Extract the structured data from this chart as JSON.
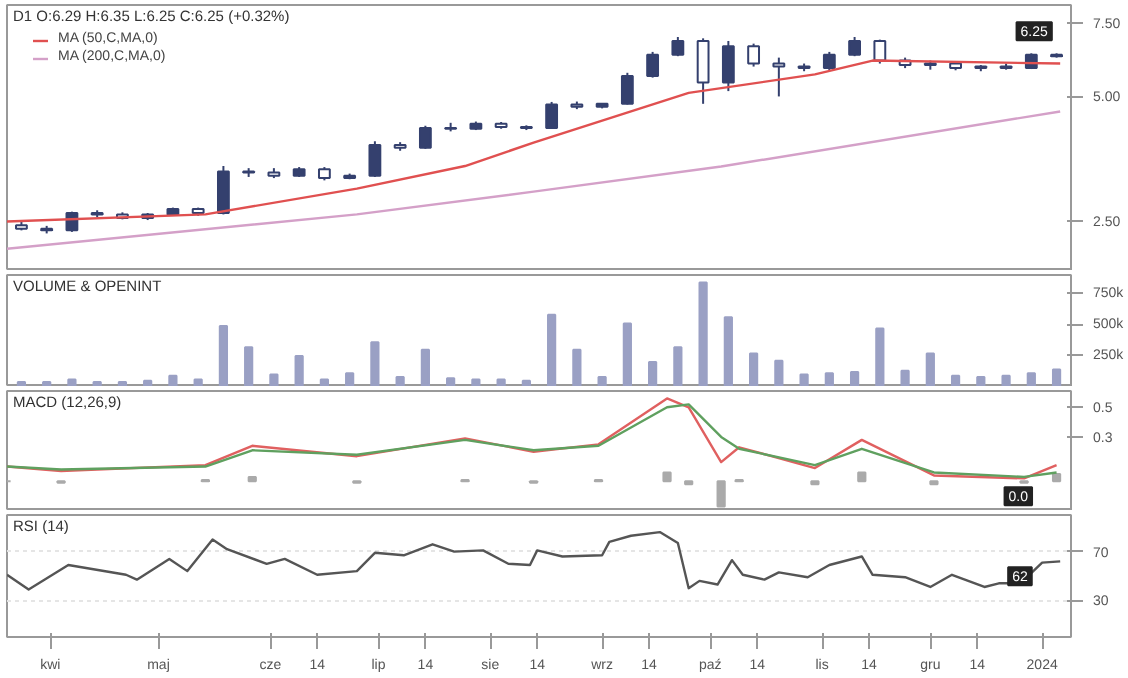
{
  "chart_data": [
    {
      "type": "candlestick",
      "title": "D1 O:6.29 H:6.35 L:6.25 C:6.25 (+0.32%)",
      "color": "#34406e",
      "log": "y",
      "ylim": [
        1.9,
        8.3
      ],
      "yticks": [
        {
          "value": 2.5,
          "label": "2.50"
        },
        {
          "value": 5,
          "label": "5.00"
        },
        {
          "value": 7.5,
          "label": "7.50"
        }
      ],
      "xlim": [
        "2023-03-20",
        "2024-01-09"
      ],
      "tick_labels": "y",
      "legend": "top left",
      "annotations": [
        {
          "text": "6.25",
          "x": "2024-01-05",
          "y": 6.25
        }
      ],
      "x": [
        "2023-03-24",
        "2023-03-31",
        "2023-04-07",
        "2023-04-14",
        "2023-04-21",
        "2023-04-28",
        "2023-05-05",
        "2023-05-12",
        "2023-05-19",
        "2023-05-26",
        "2023-06-02",
        "2023-06-09",
        "2023-06-16",
        "2023-06-23",
        "2023-06-30",
        "2023-07-07",
        "2023-07-14",
        "2023-07-21",
        "2023-07-28",
        "2023-08-04",
        "2023-08-11",
        "2023-08-18",
        "2023-08-25",
        "2023-09-01",
        "2023-09-08",
        "2023-09-15",
        "2023-09-22",
        "2023-09-29",
        "2023-10-06",
        "2023-10-13",
        "2023-10-20",
        "2023-10-27",
        "2023-11-03",
        "2023-11-10",
        "2023-11-17",
        "2023-11-24",
        "2023-12-01",
        "2023-12-08",
        "2023-12-15",
        "2023-12-22",
        "2023-12-29",
        "2024-01-05"
      ],
      "ohlc": [
        [
          2.45,
          2.5,
          2.38,
          2.4
        ],
        [
          2.4,
          2.44,
          2.34,
          2.38
        ],
        [
          2.38,
          2.64,
          2.36,
          2.62
        ],
        [
          2.62,
          2.66,
          2.56,
          2.6
        ],
        [
          2.6,
          2.63,
          2.53,
          2.55
        ],
        [
          2.55,
          2.62,
          2.52,
          2.6
        ],
        [
          2.6,
          2.7,
          2.58,
          2.68
        ],
        [
          2.68,
          2.7,
          2.58,
          2.62
        ],
        [
          2.62,
          3.4,
          2.6,
          3.3
        ],
        [
          3.3,
          3.36,
          3.2,
          3.28
        ],
        [
          3.28,
          3.36,
          3.18,
          3.22
        ],
        [
          3.22,
          3.38,
          3.2,
          3.34
        ],
        [
          3.34,
          3.38,
          3.14,
          3.18
        ],
        [
          3.18,
          3.26,
          3.16,
          3.22
        ],
        [
          3.22,
          3.9,
          3.2,
          3.82
        ],
        [
          3.82,
          3.88,
          3.7,
          3.76
        ],
        [
          3.76,
          4.25,
          3.74,
          4.2
        ],
        [
          4.2,
          4.32,
          4.12,
          4.18
        ],
        [
          4.18,
          4.35,
          4.15,
          4.3
        ],
        [
          4.3,
          4.34,
          4.18,
          4.22
        ],
        [
          4.22,
          4.26,
          4.15,
          4.2
        ],
        [
          4.2,
          4.85,
          4.18,
          4.78
        ],
        [
          4.78,
          4.86,
          4.66,
          4.72
        ],
        [
          4.72,
          4.82,
          4.68,
          4.8
        ],
        [
          4.8,
          5.7,
          4.78,
          5.6
        ],
        [
          5.6,
          6.4,
          5.55,
          6.3
        ],
        [
          6.3,
          6.95,
          6.25,
          6.8
        ],
        [
          6.8,
          6.9,
          4.8,
          5.4
        ],
        [
          5.4,
          6.8,
          5.15,
          6.6
        ],
        [
          6.6,
          6.7,
          5.9,
          6.0
        ],
        [
          6.0,
          6.2,
          5.0,
          5.9
        ],
        [
          5.9,
          6.0,
          5.75,
          5.85
        ],
        [
          5.85,
          6.4,
          5.78,
          6.3
        ],
        [
          6.3,
          6.95,
          6.25,
          6.8
        ],
        [
          6.8,
          6.85,
          6.0,
          6.1
        ],
        [
          6.1,
          6.2,
          5.85,
          5.95
        ],
        [
          5.95,
          6.1,
          5.8,
          6.0
        ],
        [
          6.0,
          6.05,
          5.78,
          5.85
        ],
        [
          5.85,
          5.95,
          5.75,
          5.9
        ],
        [
          5.9,
          6.0,
          5.8,
          5.85
        ],
        [
          5.85,
          6.35,
          5.82,
          6.3
        ],
        [
          6.3,
          6.35,
          6.2,
          6.25
        ]
      ],
      "series": [
        {
          "type": "line",
          "name": "MA (50,C,MA,0)",
          "color": "#e05050",
          "x": [
            "2023-03-20",
            "2023-05-14",
            "2023-06-25",
            "2023-07-25",
            "2023-08-13",
            "2023-09-25",
            "2023-10-30",
            "2023-11-15",
            "2024-01-06"
          ],
          "values": [
            2.5,
            2.6,
            3.0,
            3.4,
            3.87,
            5.1,
            5.65,
            6.1,
            6.0
          ]
        },
        {
          "type": "line",
          "name": "MA (200,C,MA,0)",
          "color": "#d4a0c8",
          "x": [
            "2023-03-20",
            "2023-06-25",
            "2023-08-13",
            "2023-10-04",
            "2024-01-06"
          ],
          "values": [
            2.15,
            2.6,
            2.95,
            3.39,
            4.6
          ]
        }
      ]
    },
    {
      "type": "bar",
      "title": "VOLUME & OPENINT",
      "color": "#9aa0c4",
      "ylim": [
        0,
        900000
      ],
      "yticks": [
        {
          "value": 250000,
          "label": "250k"
        },
        {
          "value": 500000,
          "label": "500k"
        },
        {
          "value": 750000,
          "label": "750k"
        }
      ],
      "xlim": [
        "2023-03-20",
        "2024-01-09"
      ],
      "tick_labels": "y",
      "x": [
        "2023-03-24",
        "2023-03-31",
        "2023-04-07",
        "2023-04-14",
        "2023-04-21",
        "2023-04-28",
        "2023-05-05",
        "2023-05-12",
        "2023-05-19",
        "2023-05-26",
        "2023-06-02",
        "2023-06-09",
        "2023-06-16",
        "2023-06-23",
        "2023-06-30",
        "2023-07-07",
        "2023-07-14",
        "2023-07-21",
        "2023-07-28",
        "2023-08-04",
        "2023-08-11",
        "2023-08-18",
        "2023-08-25",
        "2023-09-01",
        "2023-09-08",
        "2023-09-15",
        "2023-09-22",
        "2023-09-29",
        "2023-10-06",
        "2023-10-13",
        "2023-10-20",
        "2023-10-27",
        "2023-11-03",
        "2023-11-10",
        "2023-11-17",
        "2023-11-24",
        "2023-12-01",
        "2023-12-08",
        "2023-12-15",
        "2023-12-22",
        "2023-12-29",
        "2024-01-05"
      ],
      "values": [
        40000,
        40000,
        60000,
        40000,
        40000,
        50000,
        90000,
        60000,
        490000,
        320000,
        100000,
        250000,
        60000,
        110000,
        360000,
        80000,
        300000,
        70000,
        60000,
        60000,
        50000,
        580000,
        300000,
        80000,
        510000,
        200000,
        320000,
        840000,
        560000,
        270000,
        210000,
        100000,
        110000,
        120000,
        470000,
        130000,
        270000,
        90000,
        80000,
        90000,
        110000,
        140000
      ]
    },
    {
      "type": "line",
      "title": "MACD (12,26,9)",
      "ylim": [
        -0.2,
        0.61
      ],
      "yticks": [
        0.3,
        0.5
      ],
      "xlim": [
        "2023-03-20",
        "2024-01-09"
      ],
      "tick_labels": "y",
      "annotations": [
        {
          "text": "0.0",
          "x": "2024-01-05",
          "y": 0.0
        }
      ],
      "x": [
        "2023-03-20",
        "2023-04-04",
        "2023-05-14",
        "2023-05-27",
        "2023-06-25",
        "2023-07-25",
        "2023-08-13",
        "2023-08-31",
        "2023-09-19",
        "2023-09-25",
        "2023-10-04",
        "2023-10-09",
        "2023-10-30",
        "2023-11-12",
        "2023-12-02",
        "2023-12-27",
        "2024-01-05"
      ],
      "series": [
        {
          "type": "bar",
          "color": "#aaaaaa",
          "values": [
            0,
            -0.01,
            0.01,
            0.03,
            -0.01,
            0.01,
            -0.01,
            0.01,
            0.06,
            -0.02,
            -0.17,
            0.01,
            -0.02,
            0.06,
            -0.02,
            -0.01,
            0.05
          ]
        },
        {
          "type": "line",
          "color": "#e06060",
          "values": [
            0.1,
            0.07,
            0.11,
            0.24,
            0.17,
            0.29,
            0.2,
            0.25,
            0.56,
            0.5,
            0.13,
            0.23,
            0.09,
            0.28,
            0.04,
            0.02,
            0.11
          ]
        },
        {
          "type": "line",
          "color": "#5fa05f",
          "values": [
            0.1,
            0.08,
            0.1,
            0.21,
            0.18,
            0.28,
            0.21,
            0.24,
            0.5,
            0.52,
            0.3,
            0.22,
            0.11,
            0.22,
            0.06,
            0.03,
            0.06
          ]
        }
      ]
    },
    {
      "type": "line",
      "title": "RSI (14)",
      "color": "#555555",
      "grid": "y",
      "ylim": [
        0,
        100
      ],
      "yticks": [
        30,
        70
      ],
      "xlim": [
        "2023-03-20",
        "2024-01-09"
      ],
      "xticks": [
        {
          "value": "2023-04-01",
          "label": "kwi"
        },
        {
          "value": "2023-05-01",
          "label": "maj"
        },
        {
          "value": "2023-06-01",
          "label": "cze"
        },
        {
          "value": "2023-06-14",
          "label": "14"
        },
        {
          "value": "2023-07-01",
          "label": "lip"
        },
        {
          "value": "2023-07-14",
          "label": "14"
        },
        {
          "value": "2023-08-01",
          "label": "sie"
        },
        {
          "value": "2023-08-14",
          "label": "14"
        },
        {
          "value": "2023-09-01",
          "label": "wrz"
        },
        {
          "value": "2023-09-14",
          "label": "14"
        },
        {
          "value": "2023-10-01",
          "label": "paź"
        },
        {
          "value": "2023-10-14",
          "label": "14"
        },
        {
          "value": "2023-11-01",
          "label": "lis"
        },
        {
          "value": "2023-11-14",
          "label": "14"
        },
        {
          "value": "2023-12-01",
          "label": "gru"
        },
        {
          "value": "2023-12-14",
          "label": "14"
        },
        {
          "value": "2024-01-01",
          "label": "2024"
        }
      ],
      "annotations": [
        {
          "text": "62",
          "x": "2024-01-06",
          "y": 62
        }
      ],
      "x": [
        "2023-03-20",
        "2023-03-26",
        "2023-04-06",
        "2023-04-22",
        "2023-04-25",
        "2023-05-04",
        "2023-05-09",
        "2023-05-16",
        "2023-05-20",
        "2023-05-31",
        "2023-06-05",
        "2023-06-14",
        "2023-06-25",
        "2023-06-30",
        "2023-07-08",
        "2023-07-16",
        "2023-07-22",
        "2023-07-30",
        "2023-08-06",
        "2023-08-12",
        "2023-08-14",
        "2023-08-21",
        "2023-09-01",
        "2023-09-03",
        "2023-09-09",
        "2023-09-17",
        "2023-09-22",
        "2023-09-25",
        "2023-09-28",
        "2023-10-03",
        "2023-10-07",
        "2023-10-10",
        "2023-10-16",
        "2023-10-20",
        "2023-10-28",
        "2023-11-03",
        "2023-11-12",
        "2023-11-15",
        "2023-11-24",
        "2023-12-01",
        "2023-12-07",
        "2023-12-16",
        "2023-12-20",
        "2023-12-26",
        "2024-01-01",
        "2024-01-06"
      ],
      "values": [
        51,
        39,
        59,
        51,
        47,
        64,
        54,
        80,
        72,
        60,
        64,
        51,
        54,
        69,
        67,
        76,
        70,
        71,
        60,
        59,
        71,
        66,
        67,
        78,
        83,
        86,
        77,
        40,
        46,
        43,
        63,
        51,
        47,
        53,
        49,
        59,
        66,
        51,
        49,
        41,
        51,
        41,
        44,
        44,
        61,
        62
      ]
    }
  ]
}
